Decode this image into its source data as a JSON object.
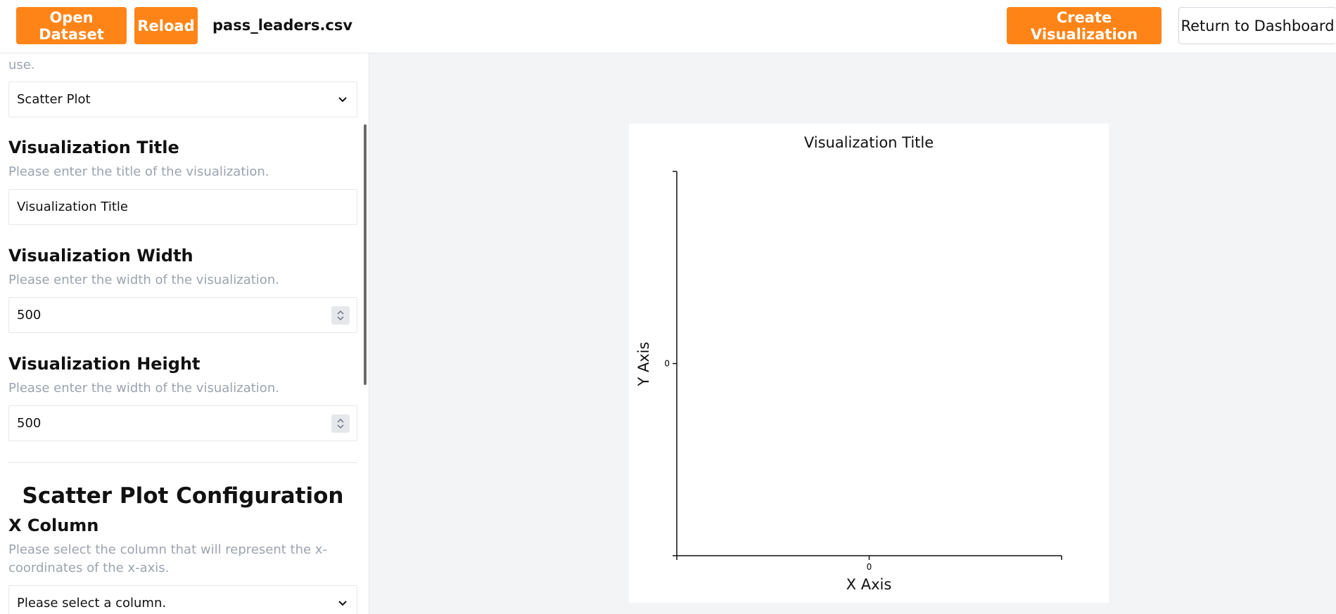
{
  "topbar": {
    "open_dataset": "Open Dataset",
    "reload": "Reload",
    "filename": "pass_leaders.csv",
    "create_visualization": "Create Visualization",
    "return_dashboard": "Return to Dashboard"
  },
  "sidebar": {
    "truncated_help": "use.",
    "chart_type_value": "Scatter Plot",
    "title_section": {
      "label": "Visualization Title",
      "help": "Please enter the title of the visualization.",
      "value": "Visualization Title"
    },
    "width_section": {
      "label": "Visualization Width",
      "help": "Please enter the width of the visualization.",
      "value": "500"
    },
    "height_section": {
      "label": "Visualization Height",
      "help": "Please enter the width of the visualization.",
      "value": "500"
    },
    "config_heading": "Scatter Plot Configuration",
    "x_column": {
      "label": "X Column",
      "help": "Please select the column that will represent the x-coordinates of the x-axis.",
      "value": "Please select a column."
    }
  },
  "chart_data": {
    "type": "scatter",
    "title": "Visualization Title",
    "xlabel": "X Axis",
    "ylabel": "Y Axis",
    "x_ticks": [
      "0"
    ],
    "y_ticks": [
      "0"
    ],
    "points": []
  },
  "colors": {
    "accent": "#ff8418",
    "main_bg": "#f3f4f6",
    "help_text": "#9ca3af"
  }
}
